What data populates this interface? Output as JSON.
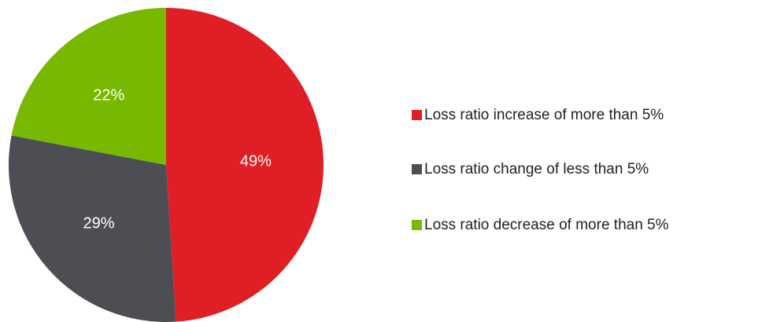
{
  "chart_data": {
    "type": "pie",
    "categories": [
      "Loss ratio increase of more than 5%",
      "Loss ratio change of less than 5%",
      "Loss ratio decrease of more than 5%"
    ],
    "values": [
      49,
      29,
      22
    ],
    "value_labels": [
      "49%",
      "29%",
      "22%"
    ],
    "colors": [
      "#e01e26",
      "#4d4e53",
      "#77b800"
    ],
    "legend": "right"
  }
}
